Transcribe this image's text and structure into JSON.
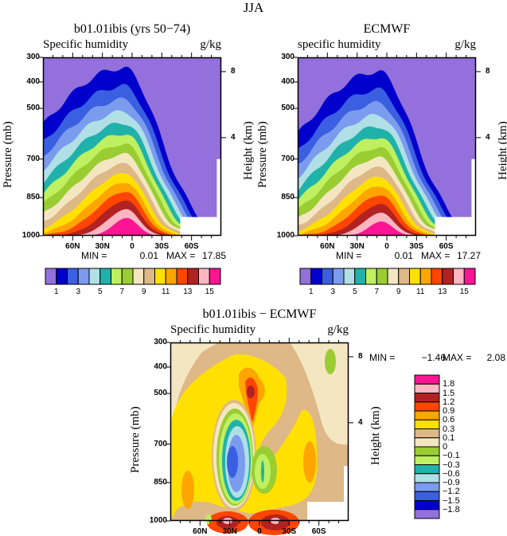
{
  "figure": {
    "title": "JJA"
  },
  "colors": {
    "top": [
      "#9370DB",
      "#0000CD",
      "#3A5FE0",
      "#7B9BEE",
      "#B0E0E6",
      "#20B2AA",
      "#BEF05F",
      "#9ACD32",
      "#F5E6C2",
      "#DEB887",
      "#FFE000",
      "#FFA500",
      "#FF4500",
      "#B22222",
      "#FFB6C1",
      "#FF1493"
    ],
    "diff": [
      "#9370DB",
      "#0000CD",
      "#3A5FE0",
      "#7B9BEE",
      "#B0E0E6",
      "#20B2AA",
      "#BEF05F",
      "#9ACD32",
      "#F5E6C2",
      "#DEB887",
      "#FFE000",
      "#FFA500",
      "#FF4500",
      "#B22222",
      "#FFB6C1",
      "#FF1493"
    ]
  },
  "chart_data": [
    {
      "type": "contour",
      "title": "b01.01ibis (yrs 50−74)",
      "left_label": "Specific humidity",
      "right_label": "g/kg",
      "ylabel": "Pressure (mb)",
      "ylabel_right": "Height (km)",
      "y_ticks": [
        "300",
        "400",
        "500",
        "700",
        "850",
        "1000"
      ],
      "y_right_ticks": [
        "8",
        "4"
      ],
      "x_ticks": [
        "60N",
        "30N",
        "0",
        "30S",
        "60S"
      ],
      "xlim": [
        "90N",
        "90S"
      ],
      "ylim": [
        1000,
        300
      ],
      "stats": {
        "min_label": "MIN =",
        "min": "0.01",
        "max_label": "MAX =",
        "max": "17.85"
      },
      "levels": [
        "1",
        "3",
        "5",
        "7",
        "9",
        "11",
        "13",
        "15"
      ],
      "contour_levels": [
        1,
        2,
        3,
        4,
        5,
        6,
        7,
        8,
        9,
        10,
        11,
        12,
        13,
        14,
        15
      ]
    },
    {
      "type": "contour",
      "title": "ECMWF",
      "left_label": "specific humidity",
      "right_label": "g/kg",
      "ylabel": "Pressure (mb)",
      "ylabel_right": "Height (km)",
      "y_ticks": [
        "300",
        "400",
        "500",
        "700",
        "850",
        "1000"
      ],
      "y_right_ticks": [
        "8",
        "4"
      ],
      "x_ticks": [
        "60N",
        "30N",
        "0",
        "30S",
        "60S"
      ],
      "xlim": [
        "90N",
        "90S"
      ],
      "ylim": [
        1000,
        300
      ],
      "stats": {
        "min_label": "MIN =",
        "min": "0.01",
        "max_label": "MAX =",
        "max": "17.27"
      },
      "levels": [
        "1",
        "3",
        "5",
        "7",
        "9",
        "11",
        "13",
        "15"
      ],
      "contour_levels": [
        1,
        2,
        3,
        4,
        5,
        6,
        7,
        8,
        9,
        10,
        11,
        12,
        13,
        14,
        15
      ]
    },
    {
      "type": "contour",
      "title": "b01.01ibis − ECMWF",
      "left_label": "Specific humidity",
      "right_label": "g/kg",
      "ylabel": "Pressure (mb)",
      "ylabel_right": "Height (km)",
      "y_ticks": [
        "300",
        "400",
        "500",
        "700",
        "850",
        "1000"
      ],
      "y_right_ticks": [
        "8",
        "4"
      ],
      "x_ticks": [
        "60N",
        "30N",
        "0",
        "30S",
        "60S"
      ],
      "xlim": [
        "90N",
        "90S"
      ],
      "ylim": [
        1000,
        300
      ],
      "stats": {
        "min_label": "MIN =",
        "min": "−1.46",
        "max_label": "MAX =",
        "max": "2.08"
      },
      "levels": [
        "1.8",
        "1.5",
        "1.2",
        "0.9",
        "0.6",
        "0.3",
        "0.1",
        "0",
        "−0.1",
        "−0.3",
        "−0.6",
        "−0.9",
        "−1.2",
        "−1.5",
        "−1.8"
      ],
      "contour_levels": [
        -1.8,
        -1.5,
        -1.2,
        -0.9,
        -0.6,
        -0.3,
        -0.1,
        0,
        0.1,
        0.3,
        0.6,
        0.9,
        1.2,
        1.5,
        1.8
      ]
    }
  ]
}
